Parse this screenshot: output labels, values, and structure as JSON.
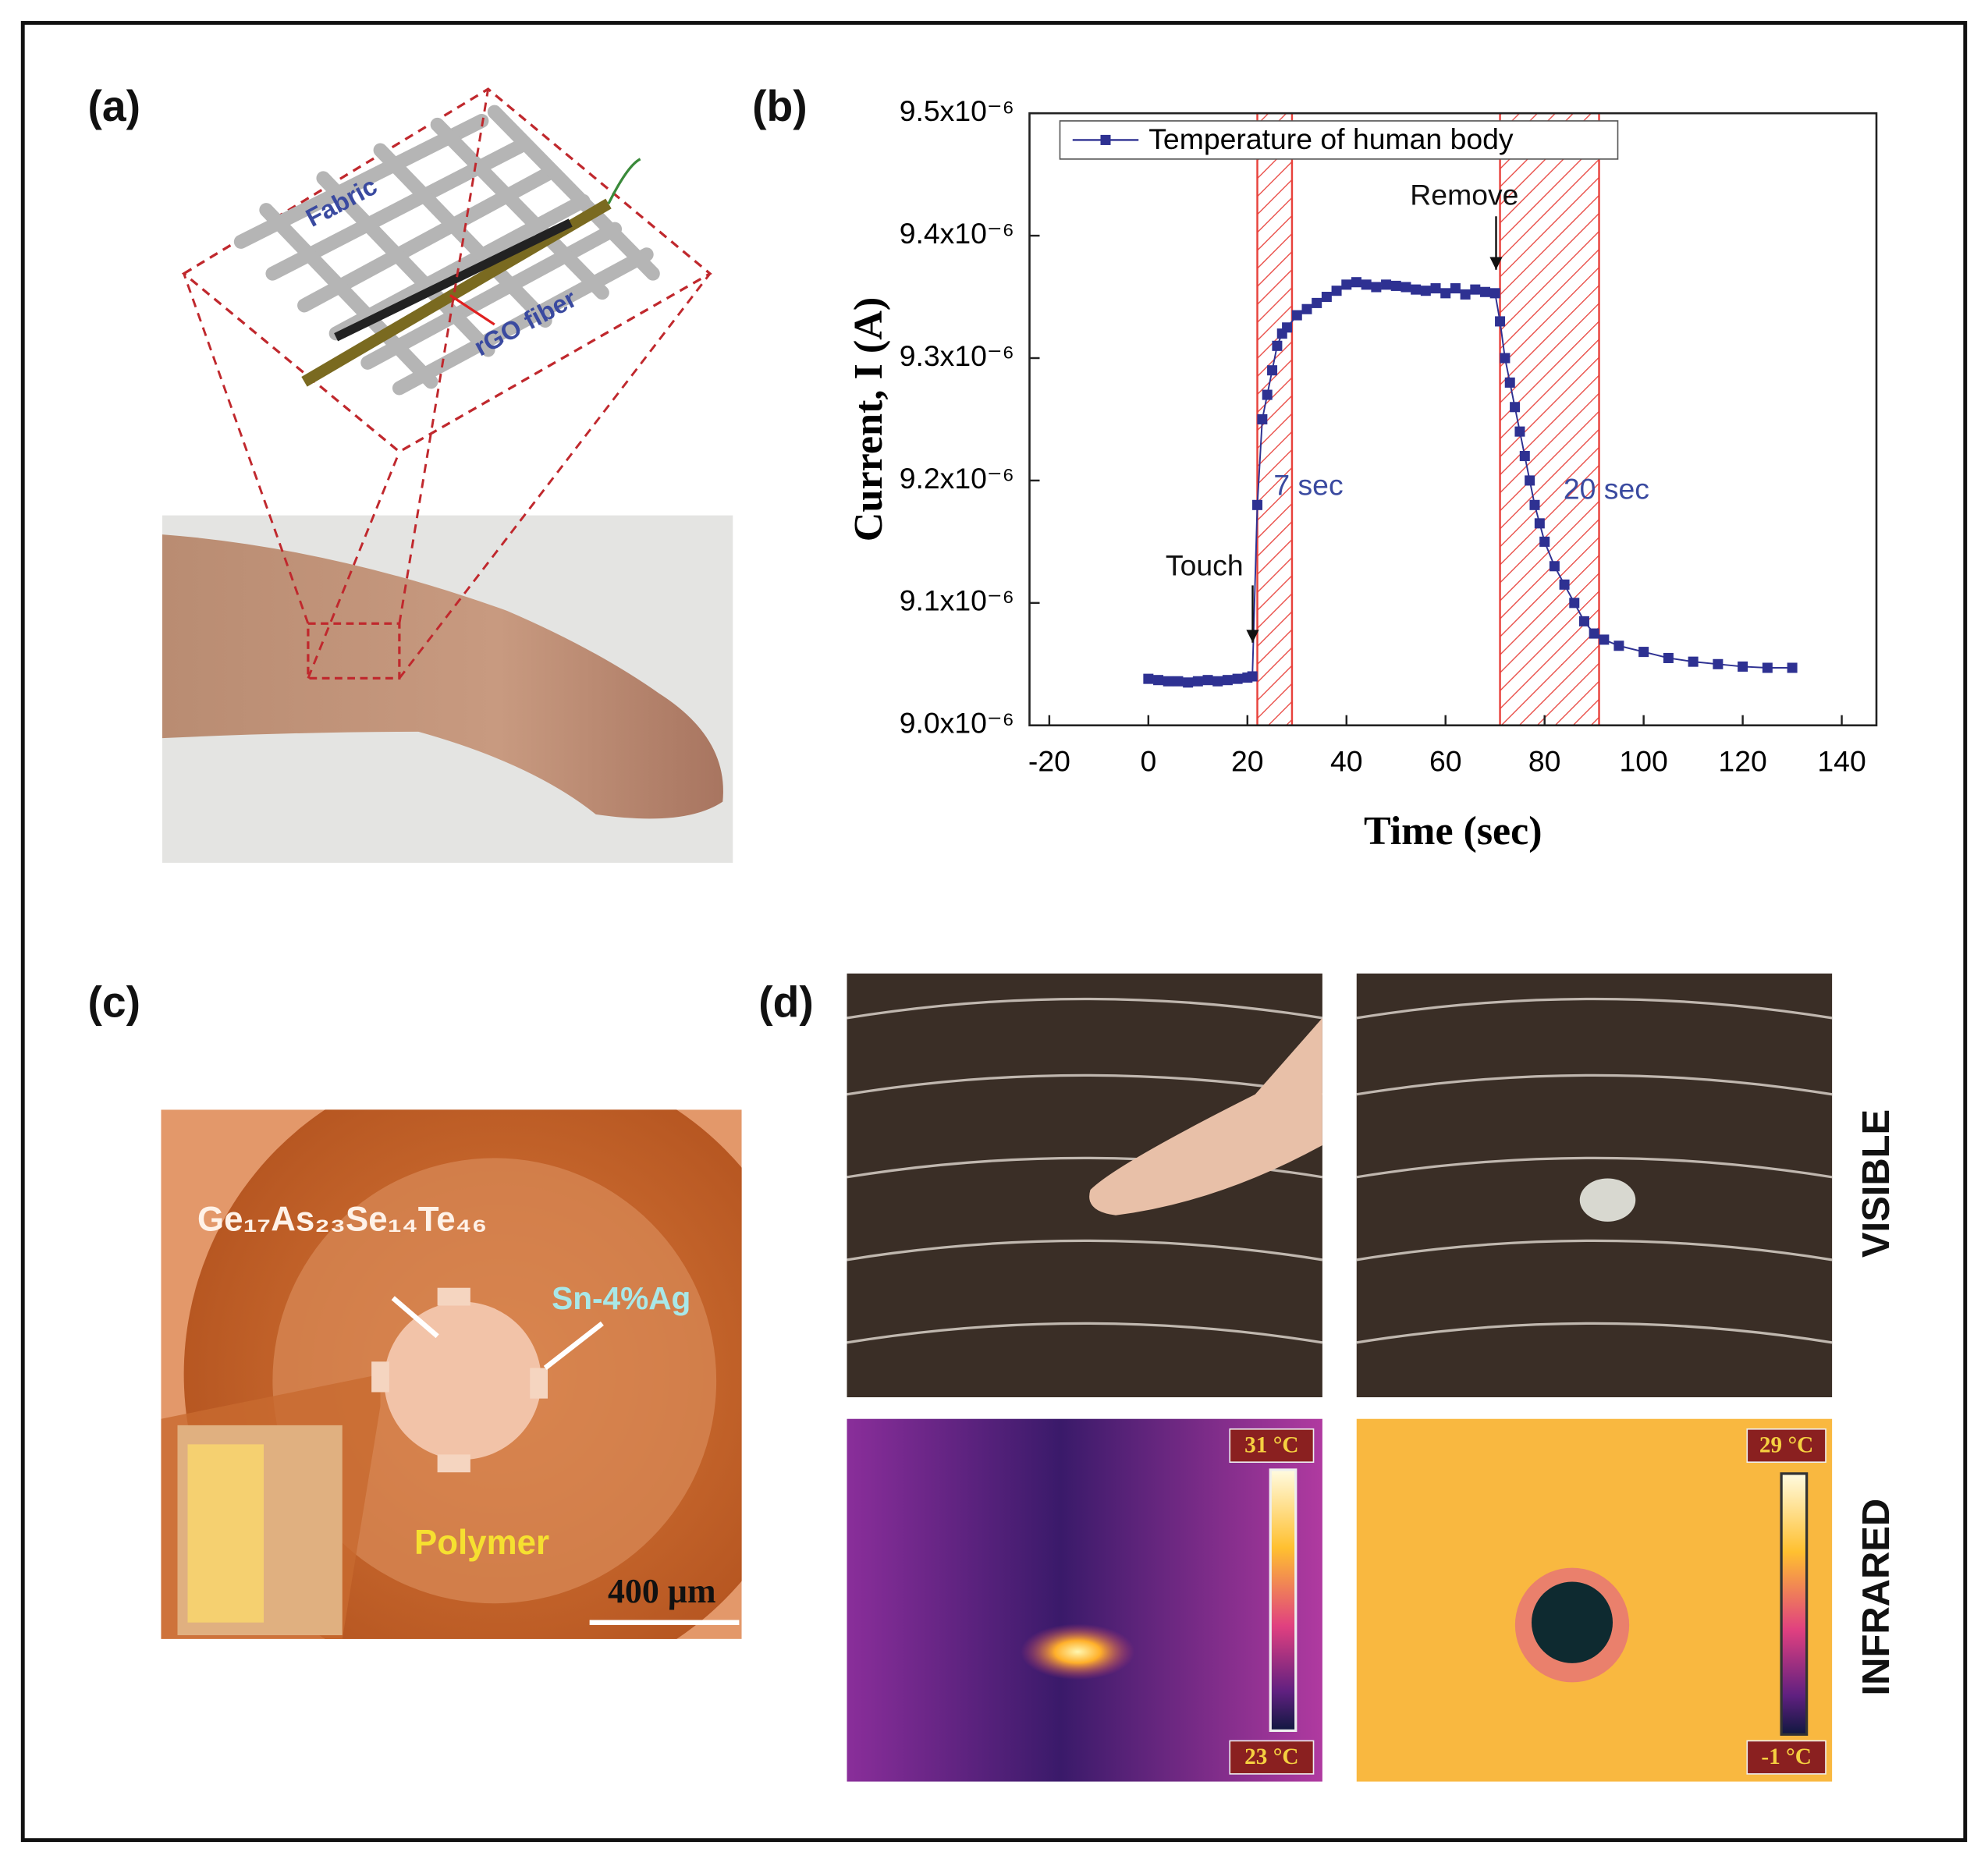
{
  "panels": {
    "a": {
      "label": "(a)",
      "fabric_text": "Fabric",
      "fiber_text": "rGO fiber"
    },
    "b": {
      "label": "(b)"
    },
    "c": {
      "label": "(c)",
      "core_text": "Ge₁₇As₂₃Se₁₄Te₄₆",
      "contact_text": "Sn-4%Ag",
      "cladding_text": "Polymer",
      "scale_text": "400 µm"
    },
    "d": {
      "label": "(d)",
      "row_labels": [
        "VISIBLE",
        "INFRARED"
      ],
      "left_max": "31 °C",
      "left_min": "23 °C",
      "right_max": "29 °C",
      "right_min": "-1 °C"
    }
  },
  "chart_data": {
    "type": "line",
    "x_label": "Time (sec)",
    "y_label": "Current, I (A)",
    "annotations": [
      "Touch",
      "Remove",
      "7 sec",
      "20 sec"
    ],
    "shaded_regions": [
      [
        22,
        29
      ],
      [
        71,
        91
      ]
    ],
    "x": [
      0,
      2,
      4,
      6,
      8,
      10,
      12,
      14,
      16,
      18,
      20,
      21,
      22,
      23,
      24,
      25,
      26,
      27,
      28,
      30,
      32,
      34,
      36,
      38,
      40,
      42,
      44,
      46,
      48,
      50,
      52,
      54,
      56,
      58,
      60,
      62,
      64,
      66,
      68,
      70,
      71,
      72,
      73,
      74,
      75,
      76,
      77,
      78,
      79,
      80,
      82,
      84,
      86,
      88,
      90,
      92,
      95,
      100,
      105,
      110,
      115,
      120,
      125,
      130
    ],
    "series": [
      {
        "name": "Temperature of human body",
        "color": "#2e3192",
        "values": [
          9.038e-06,
          9.037e-06,
          9.036e-06,
          9.036e-06,
          9.035e-06,
          9.036e-06,
          9.037e-06,
          9.036e-06,
          9.037e-06,
          9.038e-06,
          9.039e-06,
          9.04e-06,
          9.18e-06,
          9.25e-06,
          9.27e-06,
          9.29e-06,
          9.31e-06,
          9.32e-06,
          9.325e-06,
          9.335e-06,
          9.34e-06,
          9.345e-06,
          9.35e-06,
          9.355e-06,
          9.36e-06,
          9.362e-06,
          9.36e-06,
          9.358e-06,
          9.36e-06,
          9.359e-06,
          9.358e-06,
          9.356e-06,
          9.355e-06,
          9.357e-06,
          9.353e-06,
          9.357e-06,
          9.352e-06,
          9.356e-06,
          9.354e-06,
          9.353e-06,
          9.33e-06,
          9.3e-06,
          9.28e-06,
          9.26e-06,
          9.24e-06,
          9.22e-06,
          9.2e-06,
          9.18e-06,
          9.165e-06,
          9.15e-06,
          9.13e-06,
          9.115e-06,
          9.1e-06,
          9.085e-06,
          9.075e-06,
          9.07e-06,
          9.065e-06,
          9.06e-06,
          9.055e-06,
          9.052e-06,
          9.05e-06,
          9.048e-06,
          9.047e-06,
          9.047e-06
        ]
      }
    ],
    "xlim": [
      -24,
      147
    ],
    "ylim": [
      9e-06,
      9.5e-06
    ],
    "xticks": [
      -20,
      0,
      20,
      40,
      60,
      80,
      100,
      120,
      140
    ],
    "yticks": [
      {
        "value": 9e-06,
        "label": "9.0x10⁻⁶"
      },
      {
        "value": 9.1e-06,
        "label": "9.1x10⁻⁶"
      },
      {
        "value": 9.2e-06,
        "label": "9.2x10⁻⁶"
      },
      {
        "value": 9.3e-06,
        "label": "9.3x10⁻⁶"
      },
      {
        "value": 9.4e-06,
        "label": "9.4x10⁻⁶"
      },
      {
        "value": 9.5e-06,
        "label": "9.5x10⁻⁶"
      }
    ],
    "legend": "upper left"
  }
}
